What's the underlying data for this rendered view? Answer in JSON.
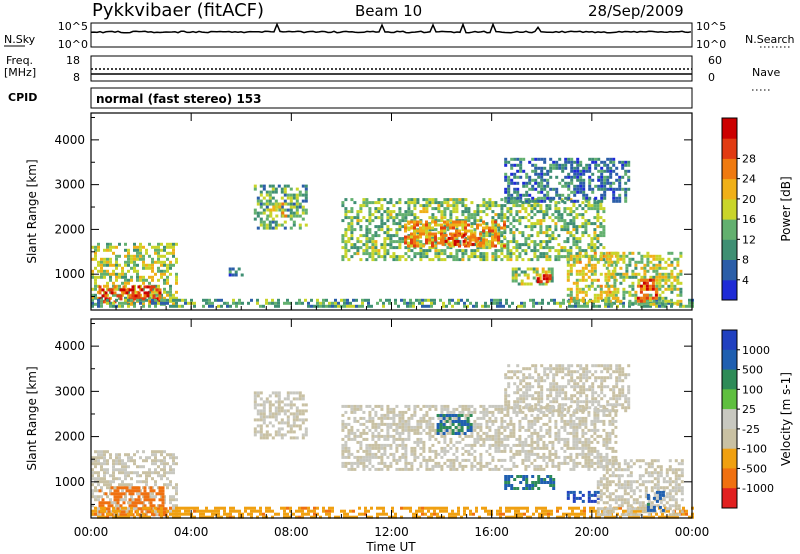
{
  "header": {
    "station": "Pykkvibaer (fitACF)",
    "beam": "Beam 10",
    "date": "28/Sep/2009"
  },
  "strips": {
    "nsky_label": "N.Sky",
    "nsky_ticks": [
      "10^5",
      "10^0"
    ],
    "nsearch_label": "N.Search",
    "nsearch_ticks": [
      "10^5",
      "10^0"
    ],
    "freq_label": "Freq.",
    "freq_unit": "[MHz]",
    "freq_ticks": [
      "18",
      "8"
    ],
    "nave_label": "Nave",
    "nave_ticks": [
      "60",
      "0"
    ],
    "cpid_label": "CPID",
    "cpid_text": "normal (fast stereo) 153"
  },
  "colors": {
    "power": [
      "#1f2bd6",
      "#2b5ea8",
      "#3f8f73",
      "#63b06f",
      "#c9d52a",
      "#f0b018",
      "#ef7a10",
      "#e13b12",
      "#cc0000"
    ],
    "velocity": [
      "#2040c0",
      "#1f5fb0",
      "#2e8b57",
      "#5fbf3f",
      "#c8c8c0",
      "#c9c1a3",
      "#f0a010",
      "#f07010",
      "#e12020"
    ],
    "axis": "#000000"
  },
  "chart_data": [
    {
      "type": "heatmap",
      "panel": "power",
      "xlabel": "",
      "ylabel": "Slant Range [km]",
      "yticks": [
        "1000",
        "2000",
        "3000",
        "4000"
      ],
      "ylim": [
        200,
        4600
      ],
      "xlim": [
        0,
        24
      ],
      "xticks": [
        "00:00",
        "04:00",
        "08:00",
        "12:00",
        "16:00",
        "20:00",
        "00:00"
      ],
      "colorbar": {
        "label": "Power [dB]",
        "ticks": [
          "4",
          "8",
          "12",
          "16",
          "20",
          "24",
          "28"
        ],
        "range": [
          0,
          30
        ]
      },
      "regions": [
        {
          "t0": 0.0,
          "t1": 3.4,
          "r0": 300,
          "r1": 1700,
          "level": 14
        },
        {
          "t0": 0.3,
          "t1": 2.8,
          "r0": 350,
          "r1": 750,
          "level": 26
        },
        {
          "t0": 0.0,
          "t1": 24.0,
          "r0": 250,
          "r1": 450,
          "level": 10
        },
        {
          "t0": 5.5,
          "t1": 6.0,
          "r0": 950,
          "r1": 1150,
          "level": 6
        },
        {
          "t0": 6.5,
          "t1": 8.6,
          "r0": 2000,
          "r1": 3000,
          "level": 10
        },
        {
          "t0": 7.0,
          "t1": 7.8,
          "r0": 2300,
          "r1": 2600,
          "level": 16
        },
        {
          "t0": 10.0,
          "t1": 20.5,
          "r0": 1300,
          "r1": 2700,
          "level": 12
        },
        {
          "t0": 12.5,
          "t1": 16.5,
          "r0": 1600,
          "r1": 2200,
          "level": 20
        },
        {
          "t0": 14.0,
          "t1": 15.5,
          "r0": 1650,
          "r1": 1900,
          "level": 25
        },
        {
          "t0": 16.5,
          "t1": 21.5,
          "r0": 2600,
          "r1": 3600,
          "level": 7
        },
        {
          "t0": 16.8,
          "t1": 18.4,
          "r0": 750,
          "r1": 1150,
          "level": 14
        },
        {
          "t0": 17.8,
          "t1": 18.3,
          "r0": 800,
          "r1": 1000,
          "level": 28
        },
        {
          "t0": 19.0,
          "t1": 21.0,
          "r0": 400,
          "r1": 1500,
          "level": 16
        },
        {
          "t0": 20.5,
          "t1": 23.6,
          "r0": 300,
          "r1": 1500,
          "level": 14
        },
        {
          "t0": 21.8,
          "t1": 22.6,
          "r0": 400,
          "r1": 900,
          "level": 24
        }
      ]
    },
    {
      "type": "heatmap",
      "panel": "velocity",
      "xlabel": "Time UT",
      "ylabel": "Slant Range [km]",
      "yticks": [
        "1000",
        "2000",
        "3000",
        "4000"
      ],
      "ylim": [
        200,
        4600
      ],
      "xlim": [
        0,
        24
      ],
      "xticks": [
        "00:00",
        "04:00",
        "08:00",
        "12:00",
        "16:00",
        "20:00",
        "00:00"
      ],
      "colorbar": {
        "label": "Velocity [m s-1]",
        "ticks": [
          "1000",
          "500",
          "100",
          "25",
          "-25",
          "-100",
          "-500",
          "-1000"
        ],
        "range": [
          -1000,
          1000
        ]
      },
      "regions": [
        {
          "t0": 0.0,
          "t1": 3.4,
          "r0": 300,
          "r1": 1700,
          "level": 0
        },
        {
          "t0": 0.3,
          "t1": 3.0,
          "r0": 300,
          "r1": 900,
          "level": -300
        },
        {
          "t0": 0.0,
          "t1": 24.0,
          "r0": 250,
          "r1": 450,
          "level": -80
        },
        {
          "t0": 6.5,
          "t1": 8.6,
          "r0": 2000,
          "r1": 3000,
          "level": 0
        },
        {
          "t0": 10.0,
          "t1": 21.0,
          "r0": 1300,
          "r1": 2700,
          "level": 0
        },
        {
          "t0": 13.8,
          "t1": 15.2,
          "r0": 2100,
          "r1": 2500,
          "level": 300
        },
        {
          "t0": 16.5,
          "t1": 21.5,
          "r0": 2600,
          "r1": 3600,
          "level": 0
        },
        {
          "t0": 16.5,
          "t1": 18.5,
          "r0": 850,
          "r1": 1150,
          "level": 300
        },
        {
          "t0": 19.0,
          "t1": 20.2,
          "r0": 550,
          "r1": 800,
          "level": 800
        },
        {
          "t0": 20.2,
          "t1": 23.6,
          "r0": 300,
          "r1": 1500,
          "level": 0
        },
        {
          "t0": 22.2,
          "t1": 22.9,
          "r0": 400,
          "r1": 800,
          "level": 400
        }
      ]
    }
  ]
}
